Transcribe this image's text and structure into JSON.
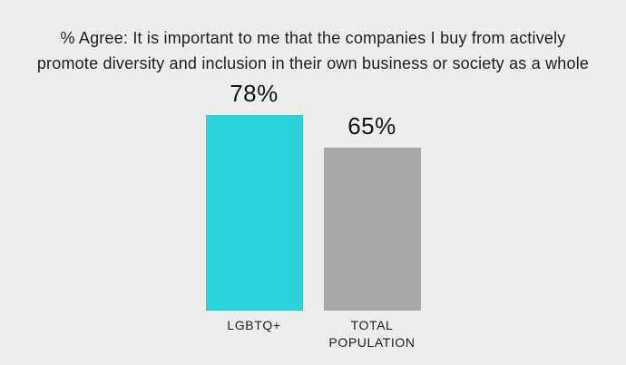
{
  "chart": {
    "title": "% Agree: It is important to me that the companies I buy from actively promote diversity and inclusion in their own business or society as a whole"
  },
  "chart_data": {
    "type": "bar",
    "title": "% Agree: It is important to me that the companies I buy from actively promote diversity and inclusion in their own business or society as a whole",
    "categories": [
      "LGBTQ+",
      "TOTAL POPULATION"
    ],
    "values": [
      78,
      65
    ],
    "value_labels": [
      "78%",
      "65%"
    ],
    "colors": [
      "#29D1D8",
      "#A9A9A9"
    ],
    "xlabel": "",
    "ylabel": "% Agree",
    "ylim": [
      0,
      100
    ],
    "grid": false,
    "legend": false,
    "background_color": "#EDEDED",
    "text_color": "#1D1D1D"
  }
}
